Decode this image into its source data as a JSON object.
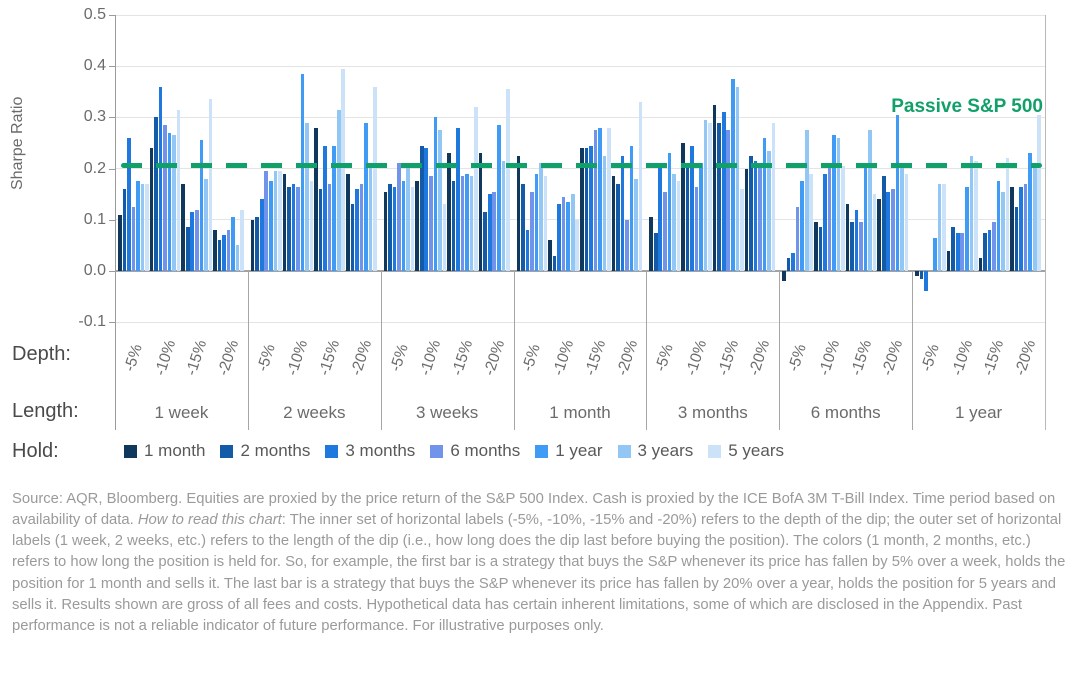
{
  "chart_data": {
    "type": "bar",
    "title": "",
    "ylabel": "Sharpe Ratio",
    "ylim": [
      -0.1,
      0.5
    ],
    "yticks": [
      "0.5",
      "0.4",
      "0.3",
      "0.2",
      "0.1",
      "0.0",
      "-0.1"
    ],
    "grid": true,
    "legend_position": "bottom",
    "benchmark": {
      "label": "Passive S&P 500",
      "value": 0.207,
      "color": "#12a06a"
    },
    "depth_categories": [
      "-5%",
      "-10%",
      "-15%",
      "-20%"
    ],
    "series_holds": [
      {
        "name": "1 month",
        "color": "#10375c"
      },
      {
        "name": "2 months",
        "color": "#135ba6"
      },
      {
        "name": "3 months",
        "color": "#1e78dd"
      },
      {
        "name": "6 months",
        "color": "#7193ea"
      },
      {
        "name": "1 year",
        "color": "#3f9bf3"
      },
      {
        "name": "3 years",
        "color": "#92c6f5"
      },
      {
        "name": "5 years",
        "color": "#cce2f9"
      }
    ],
    "groups": [
      {
        "length": "1 week",
        "values": [
          [
            0.11,
            0.16,
            0.26,
            0.125,
            0.175,
            0.17,
            0.17
          ],
          [
            0.24,
            0.3,
            0.36,
            0.285,
            0.27,
            0.265,
            0.315
          ],
          [
            0.17,
            0.085,
            0.115,
            0.12,
            0.255,
            0.18,
            0.335
          ],
          [
            0.08,
            0.06,
            0.07,
            0.08,
            0.105,
            0.05,
            0.12
          ]
        ]
      },
      {
        "length": "2 weeks",
        "values": [
          [
            0.1,
            0.105,
            0.14,
            0.195,
            0.175,
            0.195,
            0.195
          ],
          [
            0.19,
            0.165,
            0.17,
            0.165,
            0.385,
            0.29,
            0.175
          ],
          [
            0.28,
            0.16,
            0.245,
            0.17,
            0.245,
            0.315,
            0.395
          ],
          [
            0.19,
            0.13,
            0.16,
            0.17,
            0.29,
            0.21,
            0.36
          ]
        ]
      },
      {
        "length": "3 weeks",
        "values": [
          [
            0.155,
            0.17,
            0.165,
            0.21,
            0.175,
            0.205,
            0.165
          ],
          [
            0.175,
            0.245,
            0.24,
            0.185,
            0.3,
            0.275,
            0.13
          ],
          [
            0.23,
            0.175,
            0.28,
            0.185,
            0.19,
            0.185,
            0.32
          ],
          [
            0.23,
            0.115,
            0.15,
            0.155,
            0.285,
            0.215,
            0.355
          ]
        ]
      },
      {
        "length": "1 month",
        "values": [
          [
            0.225,
            0.17,
            0.08,
            0.155,
            0.19,
            0.21,
            0.185
          ],
          [
            0.06,
            0.03,
            0.13,
            0.145,
            0.135,
            0.15,
            0.1
          ],
          [
            0.24,
            0.24,
            0.245,
            0.275,
            0.28,
            0.225,
            0.28
          ],
          [
            0.185,
            0.17,
            0.225,
            0.1,
            0.245,
            0.18,
            0.33
          ]
        ]
      },
      {
        "length": "3 months",
        "values": [
          [
            0.105,
            0.075,
            0.21,
            0.155,
            0.23,
            0.19,
            0.175
          ],
          [
            0.25,
            0.21,
            0.245,
            0.165,
            0.21,
            0.295,
            0.29
          ],
          [
            0.325,
            0.29,
            0.31,
            0.275,
            0.375,
            0.36,
            0.16
          ],
          [
            0.2,
            0.225,
            0.215,
            0.21,
            0.26,
            0.235,
            0.29
          ]
        ]
      },
      {
        "length": "6 months",
        "values": [
          [
            -0.02,
            0.025,
            0.035,
            0.125,
            0.175,
            0.275,
            0.19
          ],
          [
            0.095,
            0.085,
            0.19,
            0.21,
            0.265,
            0.26,
            0.205
          ],
          [
            0.13,
            0.095,
            0.12,
            0.095,
            0.21,
            0.275,
            0.15
          ],
          [
            0.14,
            0.185,
            0.155,
            0.16,
            0.305,
            0.21,
            0.19
          ]
        ]
      },
      {
        "length": "1 year",
        "values": [
          [
            -0.01,
            -0.015,
            -0.04,
            0.0,
            0.065,
            0.17,
            0.17
          ],
          [
            0.04,
            0.085,
            0.075,
            0.075,
            0.165,
            0.225,
            0.215
          ],
          [
            0.025,
            0.075,
            0.08,
            0.095,
            0.175,
            0.155,
            0.22
          ],
          [
            0.165,
            0.125,
            0.165,
            0.17,
            0.23,
            0.21,
            0.305
          ]
        ]
      }
    ]
  },
  "rows": {
    "depth_label": "Depth:",
    "length_label": "Length:",
    "hold_label": "Hold:"
  },
  "footer": {
    "part1": "Source: AQR, Bloomberg. Equities are proxied by the price return of the S&P 500 Index. Cash is proxied by the ICE BofA 3M T-Bill Index. Time period based on availability of data. ",
    "italic": "How to read this chart",
    "part2": ": The inner set of horizontal labels (-5%, -10%, -15% and -20%) refers to the depth of the dip; the outer set of horizontal labels (1 week, 2 weeks, etc.) refers to the length of the dip (i.e., how long does the dip last before buying the position). The colors (1 month, 2 months, etc.) refers to how long the position is held for. So, for example, the first bar is a strategy that buys the S&P whenever its price has fallen by 5% over a week, holds the position for 1 month and sells it. The last bar is a strategy that buys the S&P whenever its price has fallen by 20% over a year, holds the position for 5 years and sells it. Results shown are gross of all fees and costs. Hypothetical data has certain inherent limitations, some of which are disclosed in the Appendix. Past performance is not a reliable indicator of future performance. For illustrative purposes only."
  }
}
